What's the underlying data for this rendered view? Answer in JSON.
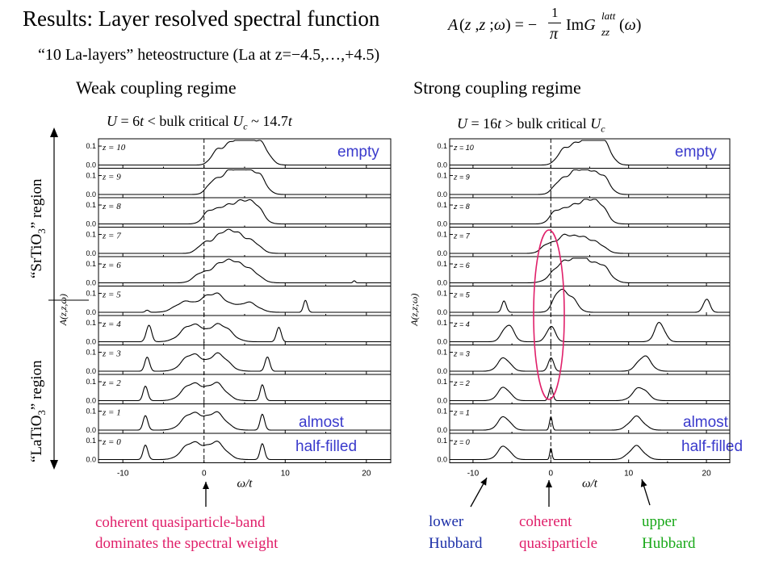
{
  "title": "Results:  Layer resolved spectral function",
  "formula": "A(z ,z ;ω) = − (1/π) Im G_zz^latt(ω)",
  "subtitle": "“10 La-layers” heteostructure (La at z=−4.5,…,+4.5)",
  "weak": {
    "heading": "Weak coupling regime",
    "condition": "U = 6t < bulk critical Uc ~ 14.7t",
    "empty_label": "empty",
    "almost_label": "almost",
    "halffilled_label": "half-filled",
    "annotation_line1": "coherent quasiparticle-band",
    "annotation_line2": "dominates the spectral weight"
  },
  "strong": {
    "heading": "Strong coupling regime",
    "condition": "U = 16t > bulk critical Uc",
    "empty_label": "empty",
    "almost_label": "almost",
    "halffilled_label": "half-filled",
    "lower_line1": "lower",
    "lower_line2": "Hubbard",
    "coherent_line1": "coherent",
    "coherent_line2": "quasiparticle",
    "upper_line1": "upper",
    "upper_line2": "Hubbard"
  },
  "regions": {
    "srtio3": "“SrTiO3” region",
    "latio3": "“LaTiO3” region"
  },
  "colors": {
    "blue": "#3a3acc",
    "pink": "#e0206a",
    "green": "#18a818",
    "navy": "#1c2fa8"
  },
  "chart_data": [
    {
      "type": "line",
      "name": "weak",
      "xlabel": "ω/t",
      "ylabel": "A(z,z,ω)",
      "xlim": [
        -13,
        23
      ],
      "ylim": [
        0,
        0.13
      ],
      "xticks": [
        -10,
        0,
        10,
        20
      ],
      "yticks": [
        0.0,
        0.1
      ],
      "panels": [
        {
          "z": 10,
          "label": "z = 10",
          "peaks": [
            [
              3.5,
              0.115,
              1.5
            ],
            [
              5.5,
              0.11,
              1.4
            ],
            [
              7.2,
              0.09,
              1.2
            ],
            [
              1.5,
              0.06,
              1.0
            ]
          ]
        },
        {
          "z": 9,
          "label": "z = 9",
          "peaks": [
            [
              3.0,
              0.11,
              1.6
            ],
            [
              5.0,
              0.105,
              1.4
            ],
            [
              6.8,
              0.09,
              1.2
            ],
            [
              1.0,
              0.05,
              1.0
            ]
          ]
        },
        {
          "z": 8,
          "label": "z = 8",
          "peaks": [
            [
              2.5,
              0.09,
              1.6
            ],
            [
              4.8,
              0.105,
              1.4
            ],
            [
              6.5,
              0.08,
              1.2
            ],
            [
              0.5,
              0.05,
              1.0
            ]
          ]
        },
        {
          "z": 7,
          "label": "z = 7",
          "peaks": [
            [
              2.2,
              0.1,
              1.4
            ],
            [
              4.0,
              0.09,
              1.3
            ],
            [
              6.0,
              0.06,
              1.3
            ],
            [
              0.0,
              0.05,
              1.1
            ]
          ]
        },
        {
          "z": 6,
          "label": "z = 6",
          "peaks": [
            [
              2.0,
              0.09,
              1.8
            ],
            [
              4.0,
              0.08,
              1.6
            ],
            [
              6.0,
              0.05,
              1.4
            ],
            [
              -0.5,
              0.04,
              1.2
            ],
            [
              18.5,
              0.012,
              0.2
            ]
          ]
        },
        {
          "z": 5,
          "label": "z = 5",
          "peaks": [
            [
              1.2,
              0.1,
              2.2
            ],
            [
              -2.5,
              0.05,
              1.6
            ],
            [
              5.5,
              0.05,
              1.6
            ],
            [
              -7.0,
              0.012,
              0.3
            ],
            [
              12.5,
              0.06,
              0.35
            ]
          ]
        },
        {
          "z": 4,
          "label": "z = 4",
          "peaks": [
            [
              -1.5,
              0.09,
              1.8
            ],
            [
              2.0,
              0.09,
              1.8
            ],
            [
              -6.8,
              0.09,
              0.45
            ],
            [
              9.2,
              0.08,
              0.4
            ]
          ]
        },
        {
          "z": 3,
          "label": "z = 3",
          "peaks": [
            [
              -1.5,
              0.09,
              1.6
            ],
            [
              1.8,
              0.09,
              1.6
            ],
            [
              -7.0,
              0.08,
              0.4
            ],
            [
              7.8,
              0.08,
              0.4
            ]
          ]
        },
        {
          "z": 2,
          "label": "z = 2",
          "peaks": [
            [
              -1.5,
              0.09,
              1.6
            ],
            [
              1.5,
              0.09,
              1.6
            ],
            [
              -7.2,
              0.08,
              0.4
            ],
            [
              7.2,
              0.08,
              0.4
            ]
          ]
        },
        {
          "z": 1,
          "label": "z = 1",
          "peaks": [
            [
              -1.5,
              0.09,
              1.6
            ],
            [
              1.5,
              0.09,
              1.6
            ],
            [
              -7.2,
              0.08,
              0.4
            ],
            [
              7.2,
              0.08,
              0.4
            ]
          ]
        },
        {
          "z": 0,
          "label": "z = 0",
          "peaks": [
            [
              -1.5,
              0.09,
              1.6
            ],
            [
              1.5,
              0.09,
              1.6
            ],
            [
              -7.2,
              0.08,
              0.4
            ],
            [
              7.2,
              0.08,
              0.4
            ]
          ]
        }
      ]
    },
    {
      "type": "line",
      "name": "strong",
      "xlabel": "ω/t",
      "ylabel": "A(z,z;ω)",
      "xlim": [
        -13,
        23
      ],
      "ylim": [
        0,
        0.13
      ],
      "xticks": [
        -10,
        0,
        10,
        20
      ],
      "yticks": [
        0.0,
        0.1
      ],
      "panels": [
        {
          "z": 10,
          "label": "z = 10",
          "peaks": [
            [
              3.5,
              0.11,
              1.6
            ],
            [
              5.5,
              0.1,
              1.4
            ],
            [
              7.0,
              0.09,
              1.2
            ],
            [
              1.5,
              0.06,
              1.1
            ]
          ]
        },
        {
          "z": 9,
          "label": "z = 9",
          "peaks": [
            [
              3.0,
              0.11,
              1.6
            ],
            [
              5.0,
              0.1,
              1.4
            ],
            [
              6.8,
              0.08,
              1.2
            ],
            [
              1.0,
              0.05,
              1.1
            ]
          ]
        },
        {
          "z": 8,
          "label": "z = 8",
          "peaks": [
            [
              2.5,
              0.09,
              1.6
            ],
            [
              4.8,
              0.11,
              1.4
            ],
            [
              6.5,
              0.08,
              1.2
            ],
            [
              0.5,
              0.05,
              1.0
            ]
          ]
        },
        {
          "z": 7,
          "label": "z = 7",
          "peaks": [
            [
              1.8,
              0.09,
              1.6
            ],
            [
              4.0,
              0.07,
              1.4
            ],
            [
              6.0,
              0.05,
              1.4
            ],
            [
              -0.5,
              0.04,
              1.1
            ]
          ]
        },
        {
          "z": 6,
          "label": "z = 6",
          "peaks": [
            [
              1.5,
              0.1,
              1.8
            ],
            [
              4.0,
              0.12,
              1.6
            ],
            [
              6.5,
              0.09,
              1.5
            ]
          ]
        },
        {
          "z": 5,
          "label": "z = 5",
          "peaks": [
            [
              1.0,
              0.1,
              1.0
            ],
            [
              2.5,
              0.08,
              1.2
            ],
            [
              -6.0,
              0.06,
              0.4
            ],
            [
              20.0,
              0.07,
              0.6
            ]
          ]
        },
        {
          "z": 4,
          "label": "z = 4",
          "peaks": [
            [
              0.0,
              0.08,
              0.8
            ],
            [
              -5.5,
              0.09,
              1.0
            ],
            [
              14.0,
              0.1,
              0.9
            ]
          ]
        },
        {
          "z": 3,
          "label": "z = 3",
          "peaks": [
            [
              0.0,
              0.07,
              0.5
            ],
            [
              -6.0,
              0.07,
              1.1
            ],
            [
              12.0,
              0.08,
              1.2
            ]
          ]
        },
        {
          "z": 2,
          "label": "z = 2",
          "peaks": [
            [
              0.0,
              0.07,
              0.35
            ],
            [
              -6.0,
              0.07,
              1.1
            ],
            [
              11.5,
              0.07,
              1.3
            ]
          ]
        },
        {
          "z": 1,
          "label": "z = 1",
          "peaks": [
            [
              0.0,
              0.07,
              0.25
            ],
            [
              -6.0,
              0.07,
              1.1
            ],
            [
              11.0,
              0.07,
              1.3
            ]
          ]
        },
        {
          "z": 0,
          "label": "z = 0",
          "peaks": [
            [
              0.0,
              0.06,
              0.2
            ],
            [
              -6.0,
              0.07,
              1.1
            ],
            [
              11.0,
              0.07,
              1.3
            ]
          ]
        }
      ]
    }
  ]
}
